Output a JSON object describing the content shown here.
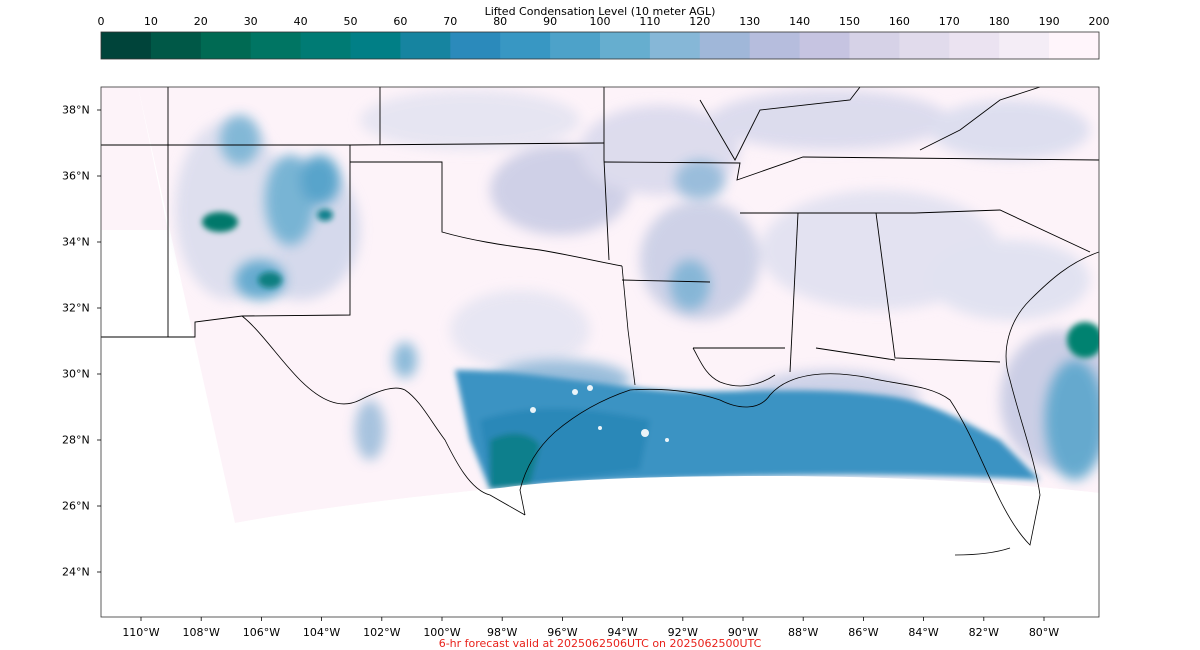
{
  "colorbar": {
    "title": "Lifted Condensation Level (10 meter AGL)",
    "ticks": [
      "0",
      "10",
      "20",
      "30",
      "40",
      "50",
      "60",
      "70",
      "80",
      "90",
      "100",
      "110",
      "120",
      "130",
      "140",
      "150",
      "160",
      "170",
      "180",
      "190",
      "200"
    ],
    "colors": [
      "#00443a",
      "#005847",
      "#006a53",
      "#007563",
      "#007b74",
      "#017f86",
      "#1684a0",
      "#2b8abb",
      "#3897c3",
      "#4da2c9",
      "#66aecf",
      "#86b7d7",
      "#a0b7d9",
      "#b6bddd",
      "#c6c4e1",
      "#d6d2e7",
      "#e1dbec",
      "#ebe3f1",
      "#f4edf6",
      "#fff5fb"
    ],
    "range": [
      0,
      200
    ]
  },
  "map": {
    "lat_labels": [
      "38°N",
      "36°N",
      "34°N",
      "32°N",
      "30°N",
      "28°N",
      "26°N",
      "24°N"
    ],
    "lon_labels": [
      "110°W",
      "108°W",
      "106°W",
      "104°W",
      "102°W",
      "100°W",
      "98°W",
      "96°W",
      "94°W",
      "92°W",
      "90°W",
      "88°W",
      "86°W",
      "84°W",
      "82°W",
      "80°W"
    ],
    "lat_values": [
      38,
      36,
      34,
      32,
      30,
      28,
      26,
      24
    ],
    "lon_values": [
      -110,
      -108,
      -106,
      -104,
      -102,
      -100,
      -98,
      -96,
      -94,
      -92,
      -90,
      -88,
      -86,
      -84,
      -82,
      -80
    ]
  },
  "footer": "6-hr forecast valid at 2025062506UTC on 2025062500UTC"
}
